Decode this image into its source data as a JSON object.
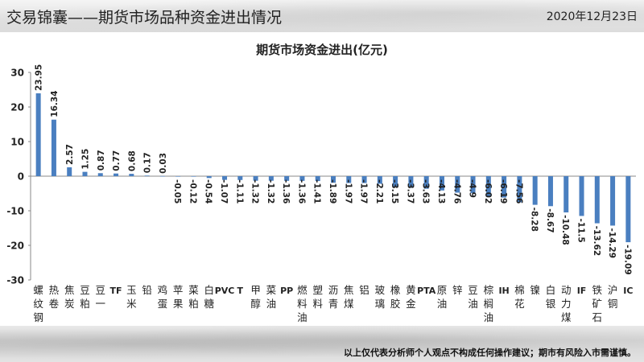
{
  "header": {
    "title": "交易锦囊——期货市场品种资金进出情况",
    "date": "2020年12月23日"
  },
  "footer": {
    "disclaimer": "以上仅代表分析师个人观点不构成任何操作建议；期市有风险入市需谨慎。"
  },
  "colors": {
    "bar": "#4a7fc0",
    "axis": "#888888",
    "text": "#222222"
  },
  "chart_data": {
    "type": "bar",
    "title": "期货市场资金进出(亿元)",
    "ylim": [
      -30,
      30
    ],
    "yticks": [
      30,
      20,
      10,
      0,
      -10,
      -20,
      -30
    ],
    "grid": false,
    "categories": [
      "螺纹钢",
      "热卷",
      "焦炭",
      "豆粕",
      "豆一",
      "TF",
      "玉米",
      "铅",
      "鸡蛋",
      "苹果",
      "菜粕",
      "白糖",
      "PVC",
      "T",
      "甲醇",
      "菜油",
      "PP",
      "燃料油",
      "塑料",
      "沥青",
      "焦煤",
      "铝",
      "玻璃",
      "橡胶",
      "黄金",
      "PTA",
      "原油",
      "锌",
      "豆油",
      "棕榈油",
      "IH",
      "棉花",
      "镍",
      "白银",
      "动力煤",
      "IF",
      "铁矿石",
      "沪铜",
      "IC"
    ],
    "values": [
      23.95,
      16.34,
      2.57,
      1.25,
      0.87,
      0.77,
      0.68,
      0.17,
      0.03,
      -0.05,
      -0.12,
      -0.54,
      -1.07,
      -1.11,
      -1.32,
      -1.32,
      -1.36,
      -1.36,
      -1.41,
      -1.89,
      -1.97,
      -1.97,
      -2.21,
      -3.15,
      -3.37,
      -3.63,
      -4.13,
      -4.76,
      -4.9,
      -6.02,
      -6.19,
      -7.56,
      -8.28,
      -8.67,
      -10.48,
      -11.5,
      -13.62,
      -14.29,
      -19.09
    ],
    "value_labels": [
      "23.95",
      "16.34",
      "2.57",
      "1.25",
      "0.87",
      "0.77",
      "0.68",
      "0.17",
      "0.03",
      "-0.05",
      "-0.12",
      "-0.54",
      "-1.07",
      "-1.11",
      "-1.32",
      "-1.32",
      "-1.36",
      "-1.36",
      "-1.41",
      "-1.89",
      "-1.97",
      "-1.97",
      "-2.21",
      "-3.15",
      "-3.37",
      "-3.63",
      "-4.13",
      "-4.76",
      "-4.9",
      "-6.02",
      "-6.19",
      "-7.56",
      "-8.28",
      "-8.67",
      "-10.48",
      "-11.5",
      "-13.62",
      "-14.29",
      "-19.09"
    ]
  }
}
